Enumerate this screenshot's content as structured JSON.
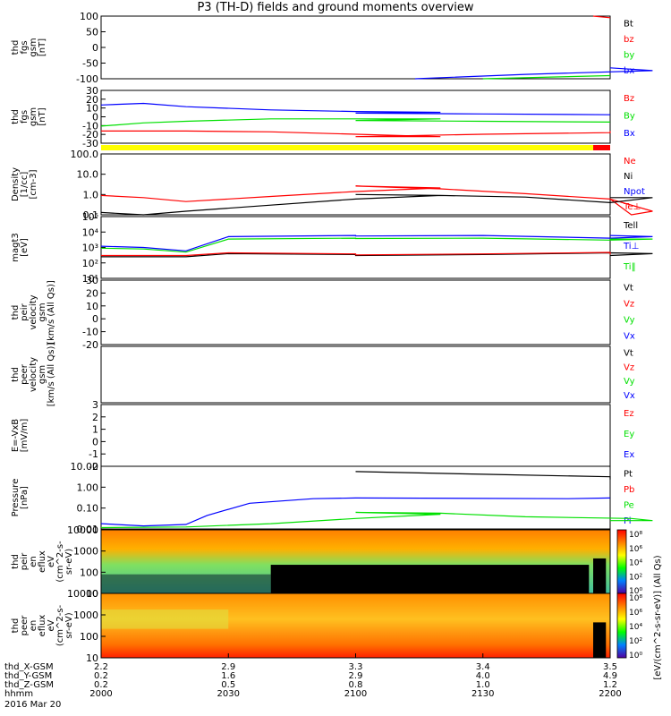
{
  "title": "P3 (TH-D) fields and ground moments overview",
  "colors": {
    "black": "#000000",
    "red": "#ff0000",
    "green": "#00e000",
    "blue": "#0000ff",
    "yellow": "#ffff00"
  },
  "chart_data": [
    {
      "id": "fgs-gsm-nt",
      "type": "line",
      "ylabel": [
        "thd",
        "fgs",
        "gsm",
        "[nT]"
      ],
      "ylim": [
        -100,
        100
      ],
      "yticks": [
        "100",
        "50",
        "0",
        "-50",
        "-100"
      ],
      "legend": [
        [
          "Bt",
          "black"
        ],
        [
          "bz",
          "red"
        ],
        [
          "by",
          "green"
        ],
        [
          "bx",
          "blue"
        ]
      ],
      "series": [
        {
          "name": "bz",
          "color": "red",
          "x": [
            2156,
            2200
          ],
          "y": [
            105,
            95
          ]
        },
        {
          "name": "by",
          "color": "green",
          "x": [
            2130,
            2200
          ],
          "y": [
            -100,
            -90
          ]
        },
        {
          "name": "bx",
          "color": "blue",
          "x": [
            2114,
            2140,
            2170,
            2200
          ],
          "y": [
            -100,
            -86,
            -74,
            -65
          ]
        }
      ]
    },
    {
      "id": "fgs-gsm-nt-2",
      "type": "line",
      "ylabel": [
        "thd",
        "fgs",
        "gsm",
        "[nT]"
      ],
      "ylim": [
        -35,
        30
      ],
      "yticks": [
        "30",
        "20",
        "10",
        "0",
        "-10",
        "-20",
        "-30"
      ],
      "legend": [
        [
          "Bz",
          "red"
        ],
        [
          "By",
          "green"
        ],
        [
          "Bx",
          "blue"
        ]
      ],
      "series": [
        {
          "name": "Bx",
          "color": "blue",
          "x": [
            2000,
            2010,
            2020,
            2040,
            2060,
            2080,
            2100,
            2130,
            2160,
            2200
          ],
          "y": [
            12,
            14,
            10,
            6,
            4,
            3,
            2,
            1,
            0,
            0
          ]
        },
        {
          "name": "By",
          "color": "green",
          "x": [
            2000,
            2010,
            2020,
            2040,
            2060,
            2080,
            2100,
            2130,
            2160,
            2200
          ],
          "y": [
            -14,
            -10,
            -8,
            -5,
            -5,
            -5,
            -7,
            -8,
            -9,
            -9
          ]
        },
        {
          "name": "Bz",
          "color": "red",
          "x": [
            2000,
            2020,
            2040,
            2060,
            2080,
            2100,
            2130,
            2160,
            2200
          ],
          "y": [
            -20,
            -20,
            -21,
            -24,
            -27,
            -27,
            -24,
            -22,
            -20
          ]
        }
      ]
    },
    {
      "id": "density",
      "type": "line",
      "ylabel": [
        "Density",
        "[1/cc]",
        "[cm-3]"
      ],
      "ylim": [
        0.1,
        100
      ],
      "log": true,
      "yticks": [
        "100.0",
        "10.0",
        "1.0",
        "0.1"
      ],
      "legend": [
        [
          "Ne",
          "red"
        ],
        [
          "Ni",
          "black"
        ],
        [
          "Npot",
          "blue"
        ],
        [
          "Te⊥",
          "red"
        ]
      ],
      "series": [
        {
          "name": "Ne",
          "color": "red",
          "x": [
            2000,
            2010,
            2020,
            2040,
            2060,
            2080,
            2100,
            2120,
            2140,
            2160,
            2165,
            2170,
            2200
          ],
          "y": [
            0.9,
            0.7,
            0.45,
            0.8,
            1.4,
            2.1,
            2.6,
            1.9,
            1.1,
            0.6,
            0.08,
            0.15,
            0.6
          ]
        },
        {
          "name": "Ni",
          "color": "black",
          "x": [
            2000,
            2010,
            2020,
            2040,
            2060,
            2080,
            2100,
            2120,
            2140,
            2160,
            2170,
            2200
          ],
          "y": [
            0.13,
            0.1,
            0.15,
            0.3,
            0.6,
            0.9,
            1.0,
            0.9,
            0.75,
            0.4,
            0.7,
            0.7
          ]
        }
      ]
    },
    {
      "id": "temperature",
      "type": "line",
      "ylabel": [
        "magt3",
        "[eV]"
      ],
      "ylim": [
        10,
        100000
      ],
      "log": true,
      "yticks": [
        "10⁵",
        "10⁴",
        "10³",
        "10²",
        "10¹"
      ],
      "legend": [
        [
          "Tell",
          "black"
        ],
        [
          "Ti⊥",
          "blue"
        ],
        [
          "Ti‖",
          "green"
        ]
      ],
      "series": [
        {
          "name": "Ti⊥",
          "color": "blue",
          "x": [
            2000,
            2010,
            2020,
            2030,
            2060,
            2100,
            2130,
            2160,
            2170,
            2200
          ],
          "y": [
            1200,
            1000,
            600,
            5000,
            6000,
            5500,
            6000,
            4000,
            5000,
            6000
          ]
        },
        {
          "name": "Ti‖",
          "color": "green",
          "x": [
            2000,
            2010,
            2020,
            2030,
            2060,
            2100,
            2130,
            2160,
            2170,
            2200
          ],
          "y": [
            900,
            800,
            500,
            3500,
            4000,
            3800,
            4000,
            3000,
            3500,
            3500
          ]
        },
        {
          "name": "Tell",
          "color": "black",
          "x": [
            2000,
            2020,
            2030,
            2060,
            2100,
            2130,
            2160,
            2170,
            2200
          ],
          "y": [
            250,
            250,
            400,
            350,
            300,
            350,
            450,
            400,
            300
          ]
        },
        {
          "name": "Te⊥",
          "color": "red",
          "x": [
            2000,
            2020,
            2030,
            2060,
            2100,
            2130,
            2160,
            2200
          ],
          "y": [
            300,
            300,
            450,
            380,
            330,
            380,
            480,
            350
          ]
        }
      ]
    },
    {
      "id": "peir-velocity",
      "type": "line",
      "ylabel": [
        "thd",
        "peir",
        "velocity",
        "gsm",
        "[km/s (All Qs)]"
      ],
      "ylim": [
        -20,
        30
      ],
      "yticks": [
        "30",
        "20",
        "10",
        "0",
        "-10",
        "-20"
      ],
      "legend": [
        [
          "Vt",
          "black"
        ],
        [
          "Vz",
          "red"
        ],
        [
          "Vy",
          "green"
        ],
        [
          "Vx",
          "blue"
        ]
      ],
      "series": []
    },
    {
      "id": "peer-velocity",
      "type": "line",
      "ylabel": [
        "thd",
        "peer",
        "velocity",
        "gsm",
        "[km/s (All Qs)]"
      ],
      "yticks": [],
      "legend": [
        [
          "Vt",
          "black"
        ],
        [
          "Vz",
          "red"
        ],
        [
          "Vy",
          "green"
        ],
        [
          "Vx",
          "blue"
        ]
      ],
      "series": []
    },
    {
      "id": "e-field",
      "type": "line",
      "ylabel": [
        "E=-VxB",
        "[mV/m]"
      ],
      "ylim": [
        -2,
        3
      ],
      "yticks": [
        "3",
        "2",
        "1",
        "0",
        "-1",
        "-2"
      ],
      "legend": [
        [
          "Ez",
          "red"
        ],
        [
          "Ey",
          "green"
        ],
        [
          "Ex",
          "blue"
        ]
      ],
      "series": []
    },
    {
      "id": "pressure",
      "type": "line",
      "ylabel": [
        "Pressure",
        "[nPa]"
      ],
      "ylim": [
        0.01,
        40
      ],
      "log": true,
      "yticks": [
        "10.00",
        "1.00",
        "0.10",
        "0.01"
      ],
      "legend": [
        [
          "Pt",
          "black"
        ],
        [
          "Pb",
          "red"
        ],
        [
          "Pe",
          "green"
        ],
        [
          "Pi",
          "blue"
        ]
      ],
      "series": [
        {
          "name": "Pt",
          "color": "black",
          "x": [
            2100,
            2130,
            2160,
            2200
          ],
          "y": [
            20,
            14,
            10,
            7
          ]
        },
        {
          "name": "Pi",
          "color": "blue",
          "x": [
            2000,
            2010,
            2020,
            2025,
            2035,
            2050,
            2100,
            2150,
            2200
          ],
          "y": [
            0.02,
            0.015,
            0.018,
            0.06,
            0.3,
            0.55,
            0.6,
            0.55,
            0.6
          ]
        },
        {
          "name": "Pe",
          "color": "green",
          "x": [
            2000,
            2020,
            2040,
            2060,
            2080,
            2100,
            2120,
            2140,
            2165,
            2170,
            2200
          ],
          "y": [
            0.012,
            0.013,
            0.02,
            0.04,
            0.07,
            0.09,
            0.08,
            0.05,
            0.04,
            0.03,
            0.03
          ]
        }
      ]
    },
    {
      "id": "peir-en-eflux",
      "type": "heatmap",
      "ylabel": [
        "thd",
        "peir",
        "en",
        "eflux",
        "eV",
        "(cm^2-s-",
        "sr-eV)"
      ],
      "yticks": [
        "10000",
        "1000",
        "100",
        "10"
      ]
    },
    {
      "id": "peer-en-eflux",
      "type": "heatmap",
      "ylabel": [
        "thd",
        "peer",
        "en",
        "eflux",
        "eV",
        "(cm^2-s-",
        "sr-eV)"
      ],
      "yticks": [
        "10000",
        "1000",
        "100",
        "10"
      ]
    }
  ],
  "colorbar": {
    "label": "[eV/(cm^2-s-sr-eV)] (All Qs)",
    "ticks": [
      "10⁸",
      "10⁶",
      "10⁴",
      "10²",
      "10⁰"
    ]
  },
  "colorbar_labels": {
    "upper": [
      "10⁸",
      "10⁶",
      "10⁴",
      "10²",
      "10⁰"
    ],
    "lower": [
      "10⁸",
      "10⁶",
      "10⁴",
      "10²",
      "10⁰"
    ]
  },
  "mode_bar": {
    "segments": [
      {
        "from": 2000,
        "to": 2156,
        "color": "yellow"
      },
      {
        "from": 2156,
        "to": 2200,
        "color": "red"
      }
    ]
  },
  "x_axis": {
    "range": [
      2000,
      2200
    ],
    "rows": [
      {
        "label": "thd_X-GSM",
        "values": [
          "2.2",
          "2.9",
          "3.3",
          "3.4",
          "3.5"
        ]
      },
      {
        "label": "thd_Y-GSM",
        "values": [
          "0.2",
          "1.6",
          "2.9",
          "4.0",
          "4.9"
        ]
      },
      {
        "label": "thd_Z-GSM",
        "values": [
          "0.2",
          "0.5",
          "0.8",
          "1.0",
          "1.2"
        ]
      },
      {
        "label": "hhmm",
        "values": [
          "2000",
          "2030",
          "2100",
          "2130",
          "2200"
        ]
      }
    ],
    "date": "2016 Mar 20"
  }
}
